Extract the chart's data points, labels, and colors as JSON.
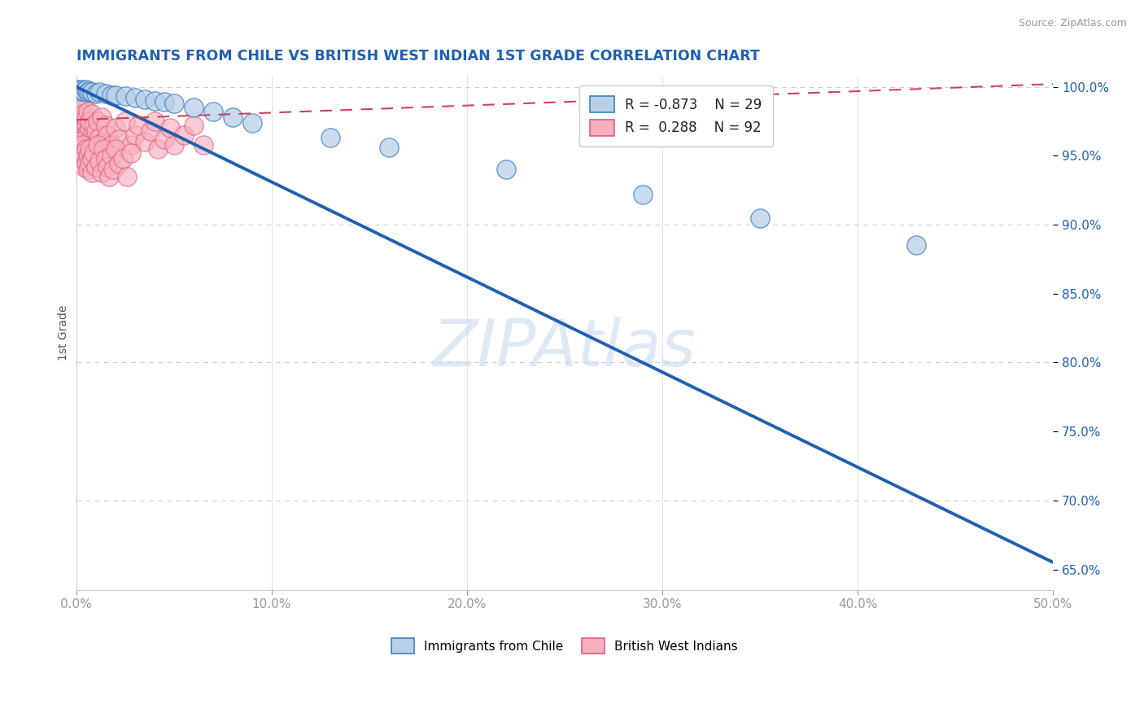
{
  "title": "IMMIGRANTS FROM CHILE VS BRITISH WEST INDIAN 1ST GRADE CORRELATION CHART",
  "source": "Source: ZipAtlas.com",
  "ylabel": "1st Grade",
  "xlim": [
    0.0,
    0.5
  ],
  "ylim": [
    0.635,
    1.008
  ],
  "xticks": [
    0.0,
    0.1,
    0.2,
    0.3,
    0.4,
    0.5
  ],
  "xtick_labels": [
    "0.0%",
    "10.0%",
    "20.0%",
    "30.0%",
    "40.0%",
    "50.0%"
  ],
  "yticks": [
    0.65,
    0.7,
    0.75,
    0.8,
    0.85,
    0.9,
    0.95,
    1.0
  ],
  "ytick_labels": [
    "65.0%",
    "70.0%",
    "75.0%",
    "80.0%",
    "85.0%",
    "90.0%",
    "95.0%",
    "100.0%"
  ],
  "blue_label": "Immigrants from Chile",
  "pink_label": "British West Indians",
  "blue_R": "-0.873",
  "blue_N": "29",
  "pink_R": "0.288",
  "pink_N": "92",
  "blue_color": "#b8d0e8",
  "blue_line_color": "#2060b0",
  "blue_edge_color": "#4080c0",
  "pink_color": "#f8b0c0",
  "pink_line_color": "#d04060",
  "pink_edge_color": "#e06080",
  "watermark": "ZIPAtlas",
  "title_color": "#2060b0",
  "source_color": "#999999",
  "blue_line_x0": 0.0,
  "blue_line_y0": 1.0,
  "blue_line_x1": 0.5,
  "blue_line_y1": 0.655,
  "pink_line_x0": 0.0,
  "pink_line_y0": 0.976,
  "pink_line_x1": 0.5,
  "pink_line_y1": 1.002,
  "blue_scatter_x": [
    0.001,
    0.002,
    0.003,
    0.004,
    0.005,
    0.006,
    0.007,
    0.008,
    0.01,
    0.012,
    0.015,
    0.018,
    0.02,
    0.025,
    0.03,
    0.035,
    0.04,
    0.045,
    0.05,
    0.06,
    0.07,
    0.08,
    0.09,
    0.13,
    0.16,
    0.22,
    0.29,
    0.35,
    0.43
  ],
  "blue_scatter_y": [
    0.998,
    0.997,
    0.998,
    0.997,
    0.998,
    0.996,
    0.997,
    0.996,
    0.995,
    0.996,
    0.995,
    0.994,
    0.994,
    0.993,
    0.992,
    0.991,
    0.99,
    0.989,
    0.988,
    0.985,
    0.982,
    0.978,
    0.974,
    0.963,
    0.956,
    0.94,
    0.922,
    0.905,
    0.885
  ],
  "pink_scatter_x": [
    0.001,
    0.001,
    0.001,
    0.001,
    0.001,
    0.002,
    0.002,
    0.002,
    0.002,
    0.003,
    0.003,
    0.003,
    0.003,
    0.004,
    0.004,
    0.004,
    0.005,
    0.005,
    0.005,
    0.005,
    0.006,
    0.006,
    0.006,
    0.007,
    0.007,
    0.007,
    0.008,
    0.008,
    0.008,
    0.009,
    0.009,
    0.01,
    0.01,
    0.011,
    0.012,
    0.013,
    0.014,
    0.015,
    0.016,
    0.018,
    0.02,
    0.022,
    0.025,
    0.028,
    0.03,
    0.032,
    0.035,
    0.038,
    0.04,
    0.042,
    0.045,
    0.048,
    0.05,
    0.055,
    0.06,
    0.065,
    0.001,
    0.001,
    0.002,
    0.002,
    0.003,
    0.003,
    0.004,
    0.004,
    0.005,
    0.005,
    0.006,
    0.006,
    0.007,
    0.007,
    0.008,
    0.008,
    0.009,
    0.01,
    0.011,
    0.012,
    0.013,
    0.014,
    0.015,
    0.016,
    0.017,
    0.018,
    0.019,
    0.02,
    0.022,
    0.024,
    0.026,
    0.028
  ],
  "pink_scatter_y": [
    0.975,
    0.963,
    0.985,
    0.955,
    0.97,
    0.972,
    0.96,
    0.98,
    0.965,
    0.975,
    0.955,
    0.988,
    0.962,
    0.97,
    0.98,
    0.958,
    0.972,
    0.965,
    0.978,
    0.955,
    0.968,
    0.96,
    0.982,
    0.97,
    0.958,
    0.975,
    0.965,
    0.955,
    0.98,
    0.962,
    0.972,
    0.958,
    0.968,
    0.975,
    0.963,
    0.978,
    0.96,
    0.972,
    0.965,
    0.958,
    0.97,
    0.962,
    0.975,
    0.958,
    0.965,
    0.972,
    0.96,
    0.968,
    0.975,
    0.955,
    0.962,
    0.97,
    0.958,
    0.965,
    0.972,
    0.958,
    0.96,
    0.95,
    0.955,
    0.945,
    0.958,
    0.948,
    0.952,
    0.942,
    0.955,
    0.945,
    0.95,
    0.94,
    0.955,
    0.945,
    0.948,
    0.938,
    0.952,
    0.942,
    0.958,
    0.946,
    0.938,
    0.955,
    0.948,
    0.942,
    0.935,
    0.95,
    0.94,
    0.955,
    0.944,
    0.948,
    0.935,
    0.952
  ]
}
